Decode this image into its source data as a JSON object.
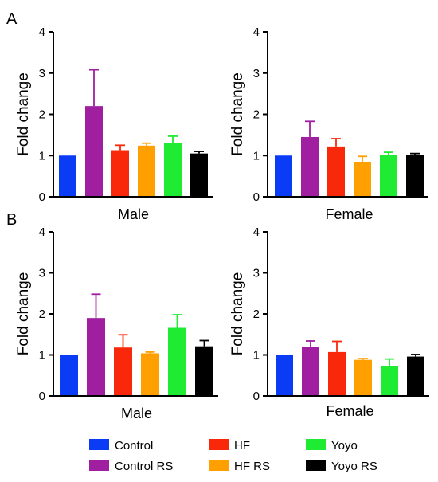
{
  "panel_labels": [
    "A",
    "B"
  ],
  "legend": {
    "position": "bottom",
    "entries": [
      {
        "label": "Control",
        "color": "#0a3cf5"
      },
      {
        "label": "Control RS",
        "color": "#a01ea0"
      },
      {
        "label": "HF",
        "color": "#fa280a"
      },
      {
        "label": "HF RS",
        "color": "#ffa000"
      },
      {
        "label": "Yoyo",
        "color": "#1eeb32"
      },
      {
        "label": "Yoyo RS",
        "color": "#000000"
      }
    ]
  },
  "chart_data": [
    {
      "type": "bar",
      "panel": "A",
      "categories": [
        "Control",
        "Control RS",
        "HF",
        "HF RS",
        "Yoyo",
        "Yoyo RS"
      ],
      "values": [
        1.0,
        2.2,
        1.13,
        1.24,
        1.3,
        1.05
      ],
      "errors": [
        0,
        0.88,
        0.12,
        0.06,
        0.17,
        0.05
      ],
      "xlabel": "Male",
      "ylabel": "Fold change",
      "ylim": [
        0,
        4
      ],
      "yticks": [
        "0",
        "1",
        "2",
        "3",
        "4"
      ],
      "grid": false
    },
    {
      "type": "bar",
      "panel": "A",
      "categories": [
        "Control",
        "Control RS",
        "HF",
        "HF RS",
        "Yoyo",
        "Yoyo RS"
      ],
      "values": [
        1.0,
        1.45,
        1.22,
        0.85,
        1.02,
        1.02
      ],
      "errors": [
        0,
        0.38,
        0.19,
        0.13,
        0.06,
        0.03
      ],
      "xlabel": "Female",
      "ylabel": "Fold change",
      "ylim": [
        0,
        4
      ],
      "yticks": [
        "0",
        "1",
        "2",
        "3",
        "4"
      ],
      "grid": false
    },
    {
      "type": "bar",
      "panel": "B",
      "categories": [
        "Control",
        "Control RS",
        "HF",
        "HF RS",
        "Yoyo",
        "Yoyo RS"
      ],
      "values": [
        1.0,
        1.9,
        1.18,
        1.04,
        1.66,
        1.21
      ],
      "errors": [
        0,
        0.58,
        0.31,
        0.03,
        0.32,
        0.14
      ],
      "xlabel": "Male",
      "ylabel": "Fold change",
      "ylim": [
        0,
        4
      ],
      "yticks": [
        "0",
        "1",
        "2",
        "3",
        "4"
      ],
      "grid": false
    },
    {
      "type": "bar",
      "panel": "B",
      "categories": [
        "Control",
        "Control RS",
        "HF",
        "HF RS",
        "Yoyo",
        "Yoyo RS"
      ],
      "values": [
        1.0,
        1.2,
        1.07,
        0.88,
        0.72,
        0.96
      ],
      "errors": [
        0,
        0.14,
        0.26,
        0.03,
        0.18,
        0.05
      ],
      "xlabel": "Female",
      "ylabel": "Fold change",
      "ylim": [
        0,
        4
      ],
      "yticks": [
        "0",
        "1",
        "2",
        "3",
        "4"
      ],
      "grid": false
    }
  ]
}
